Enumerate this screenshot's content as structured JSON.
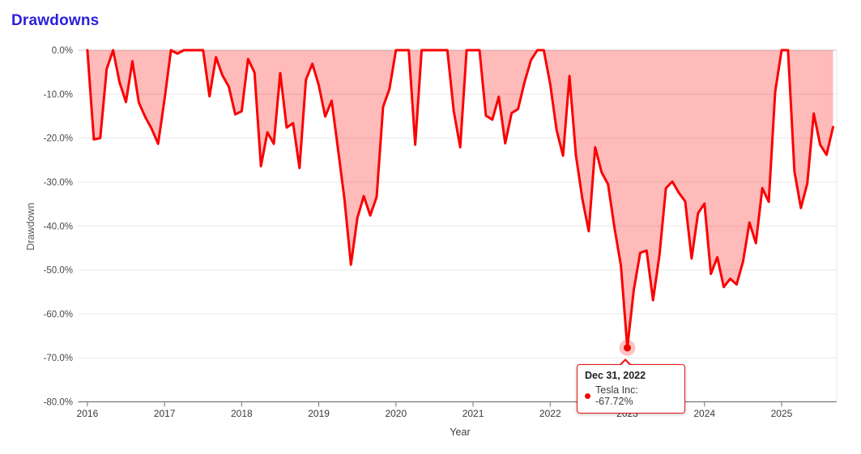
{
  "page": {
    "title": "Drawdowns"
  },
  "colors": {
    "title": "#2b21da",
    "line": "#fa0000",
    "area_fill": "rgba(255,0,0,0.27)",
    "marker_dot": "#ee0000",
    "marker_halo": "rgba(255,0,0,0.24)",
    "tooltip_border": "#ee1414"
  },
  "chart_data": {
    "type": "area",
    "title": "Drawdowns",
    "xlabel": "Year",
    "ylabel": "Drawdown",
    "x_tick_labels": [
      "2016",
      "2017",
      "2018",
      "2019",
      "2020",
      "2021",
      "2022",
      "2023",
      "2024",
      "2025"
    ],
    "y_tick_labels": [
      "0.0%",
      "-10.0%",
      "-20.0%",
      "-30.0%",
      "-40.0%",
      "-50.0%",
      "-60.0%",
      "-70.0%",
      "-80.0%"
    ],
    "ylim": [
      -80,
      0
    ],
    "grid": "horizontal",
    "legend": "none",
    "series": [
      {
        "name": "Tesla Inc",
        "unit": "drawdown_percent",
        "start_date": "2015-12-31",
        "frequency": "monthly",
        "values": [
          0.0,
          -20.3,
          -20.0,
          -4.3,
          0.0,
          -7.3,
          -11.8,
          -2.5,
          -11.9,
          -15.2,
          -17.9,
          -21.3,
          -11.2,
          0.0,
          -0.8,
          0.0,
          0.0,
          0.0,
          0.0,
          -10.5,
          -1.6,
          -5.7,
          -8.3,
          -14.6,
          -13.9,
          -2.0,
          -5.1,
          -26.4,
          -18.7,
          -21.3,
          -5.2,
          -17.6,
          -16.6,
          -26.8,
          -6.7,
          -3.1,
          -8.0,
          -15.1,
          -11.5,
          -22.6,
          -34.0,
          -48.8,
          -38.2,
          -33.2,
          -37.6,
          -33.4,
          -12.9,
          -8.8,
          0.0,
          0.0,
          0.0,
          -21.5,
          0.0,
          0.0,
          0.0,
          0.0,
          0.0,
          -13.9,
          -22.1,
          0.0,
          0.0,
          0.0,
          -14.9,
          -15.8,
          -10.6,
          -21.2,
          -14.3,
          -13.4,
          -7.3,
          -2.3,
          0.0,
          0.0,
          -7.7,
          -18.2,
          -24.0,
          -5.9,
          -23.9,
          -33.8,
          -41.2,
          -22.1,
          -27.8,
          -30.5,
          -40.4,
          -49.0,
          -67.72,
          -54.6,
          -46.1,
          -45.6,
          -56.9,
          -46.6,
          -31.4,
          -29.9,
          -32.4,
          -34.4,
          -47.4,
          -37.1,
          -34.9,
          -50.9,
          -47.1,
          -53.9,
          -52.0,
          -53.3,
          -48.1,
          -39.2,
          -43.9,
          -31.4,
          -34.5,
          -9.5,
          0.0,
          0.0,
          -27.6,
          -35.9,
          -30.3,
          -14.4,
          -21.5,
          -23.8,
          -17.5
        ]
      }
    ],
    "highlighted_point": {
      "date": "Dec 31, 2022",
      "value": -67.72,
      "index": 84
    }
  },
  "tooltip": {
    "date": "Dec 31, 2022",
    "series": "Tesla Inc",
    "value_text": "-67.72%",
    "row_text": "Tesla Inc: -67.72%"
  }
}
